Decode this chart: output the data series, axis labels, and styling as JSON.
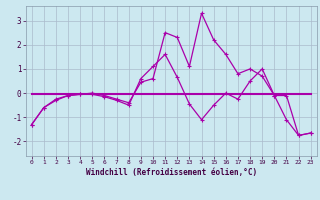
{
  "xlabel": "Windchill (Refroidissement éolien,°C)",
  "background_color": "#cce8f0",
  "grid_color": "#aabbcc",
  "line_color": "#aa00aa",
  "xlim": [
    -0.5,
    23.5
  ],
  "ylim": [
    -2.6,
    3.6
  ],
  "yticks": [
    -2,
    -1,
    0,
    1,
    2,
    3
  ],
  "xticks": [
    0,
    1,
    2,
    3,
    4,
    5,
    6,
    7,
    8,
    9,
    10,
    11,
    12,
    13,
    14,
    15,
    16,
    17,
    18,
    19,
    20,
    21,
    22,
    23
  ],
  "series1_x": [
    0,
    1,
    2,
    3,
    4,
    5,
    6,
    7,
    8,
    9,
    10,
    11,
    12,
    13,
    14,
    15,
    16,
    17,
    18,
    19,
    20,
    21,
    22,
    23
  ],
  "series1_y": [
    -1.3,
    -0.6,
    -0.25,
    -0.1,
    -0.05,
    0.0,
    -0.1,
    -0.25,
    -0.4,
    0.45,
    0.6,
    2.5,
    2.3,
    1.1,
    3.3,
    2.2,
    1.6,
    0.8,
    1.0,
    0.7,
    -0.1,
    -0.1,
    -1.75,
    -1.65
  ],
  "series2_x": [
    0,
    1,
    2,
    3,
    4,
    5,
    6,
    7,
    8,
    9,
    10,
    11,
    12,
    13,
    14,
    15,
    16,
    17,
    18,
    19,
    20,
    21,
    22,
    23
  ],
  "series2_y": [
    -1.3,
    -0.6,
    -0.3,
    -0.1,
    -0.05,
    -0.05,
    -0.15,
    -0.3,
    -0.5,
    0.6,
    1.1,
    1.6,
    0.65,
    -0.45,
    -1.1,
    -0.5,
    0.0,
    -0.25,
    0.5,
    1.0,
    -0.1,
    -1.1,
    -1.75,
    -1.65
  ],
  "series3_x": [
    0,
    23
  ],
  "series3_y": [
    -0.05,
    -0.05
  ],
  "marker": "+"
}
